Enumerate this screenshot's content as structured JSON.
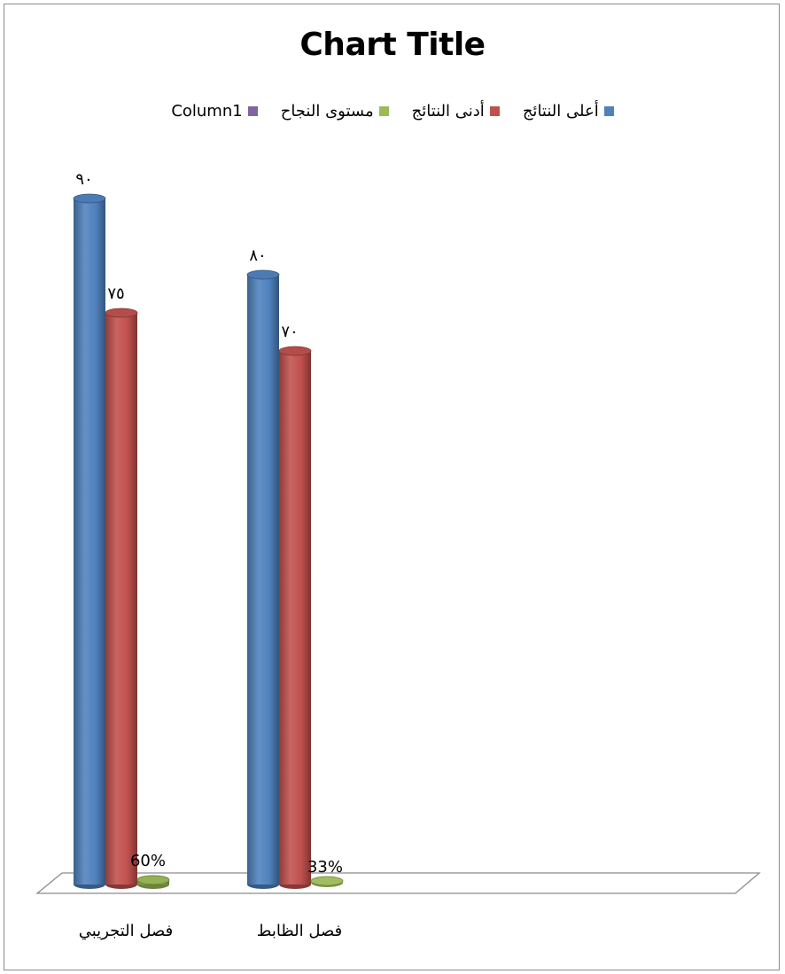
{
  "chart_data": {
    "type": "bar",
    "title": "Chart Title",
    "xlabel": "",
    "ylabel": "",
    "ylim": [
      0,
      100
    ],
    "grid": false,
    "legend_position": "top",
    "categories": [
      "فصل التجريبي",
      "فصل الظابط"
    ],
    "series": [
      {
        "name": "أعلى النتائج",
        "color": "#4f81bd",
        "values": [
          90,
          80
        ],
        "labels": [
          "٩٠",
          "٨٠"
        ]
      },
      {
        "name": "أدنى النتائج",
        "color": "#c0504d",
        "values": [
          75,
          70
        ],
        "labels": [
          "٧٥",
          "٧٠"
        ]
      },
      {
        "name": "مستوى النجاح",
        "color": "#9bbb59",
        "values": [
          0.6,
          0.33
        ],
        "labels": [
          "60%",
          "33%"
        ]
      },
      {
        "name": "Column1",
        "color": "#8064a2",
        "values": [
          null,
          null
        ],
        "labels": [
          "",
          ""
        ]
      }
    ]
  }
}
